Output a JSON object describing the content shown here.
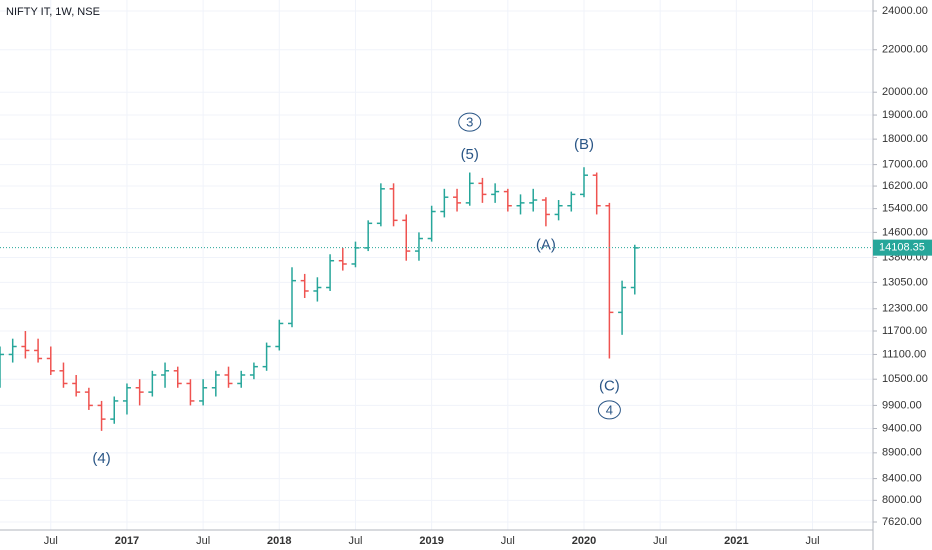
{
  "chart_data": {
    "type": "ohlc",
    "title": "NIFTY IT, 1W, NSE",
    "log_scale": true,
    "grid": true,
    "up_color": "#26a69a",
    "down_color": "#ef5350",
    "xlim": [
      "2016-03",
      "2021-12"
    ],
    "xticks": [
      {
        "value": "2016-07",
        "label": "Jul"
      },
      {
        "value": "2017-01",
        "label": "2017"
      },
      {
        "value": "2017-07",
        "label": "Jul"
      },
      {
        "value": "2018-01",
        "label": "2018"
      },
      {
        "value": "2018-07",
        "label": "Jul"
      },
      {
        "value": "2019-01",
        "label": "2019"
      },
      {
        "value": "2019-07",
        "label": "Jul"
      },
      {
        "value": "2020-01",
        "label": "2020"
      },
      {
        "value": "2020-07",
        "label": "Jul"
      },
      {
        "value": "2021-01",
        "label": "2021"
      },
      {
        "value": "2021-07",
        "label": "Jul"
      }
    ],
    "ylim": [
      7620,
      24000
    ],
    "yticks": [
      {
        "value": 24000,
        "label": "24000.00"
      },
      {
        "value": 22000,
        "label": "22000.00"
      },
      {
        "value": 20000,
        "label": "20000.00"
      },
      {
        "value": 19000,
        "label": "19000.00"
      },
      {
        "value": 18000,
        "label": "18000.00"
      },
      {
        "value": 17000,
        "label": "17000.00"
      },
      {
        "value": 16200,
        "label": "16200.00"
      },
      {
        "value": 15400,
        "label": "15400.00"
      },
      {
        "value": 14600,
        "label": "14600.00"
      },
      {
        "value": 13800,
        "label": "13800.00"
      },
      {
        "value": 13050,
        "label": "13050.00"
      },
      {
        "value": 12300,
        "label": "12300.00"
      },
      {
        "value": 11700,
        "label": "11700.00"
      },
      {
        "value": 11100,
        "label": "11100.00"
      },
      {
        "value": 10500,
        "label": "10500.00"
      },
      {
        "value": 9900,
        "label": "9900.00"
      },
      {
        "value": 9400,
        "label": "9400.00"
      },
      {
        "value": 8900,
        "label": "8900.00"
      },
      {
        "value": 8400,
        "label": "8400.00"
      },
      {
        "value": 8000,
        "label": "8000.00"
      },
      {
        "value": 7620,
        "label": "7620.00"
      }
    ],
    "last_price": 14108.35,
    "x": [
      "2016-03",
      "2016-04",
      "2016-05",
      "2016-06",
      "2016-07",
      "2016-08",
      "2016-09",
      "2016-10",
      "2016-11",
      "2016-12",
      "2017-01",
      "2017-02",
      "2017-03",
      "2017-04",
      "2017-05",
      "2017-06",
      "2017-07",
      "2017-08",
      "2017-09",
      "2017-10",
      "2017-11",
      "2017-12",
      "2018-01",
      "2018-02",
      "2018-03",
      "2018-04",
      "2018-05",
      "2018-06",
      "2018-07",
      "2018-08",
      "2018-09",
      "2018-10",
      "2018-11",
      "2018-12",
      "2019-01",
      "2019-02",
      "2019-03",
      "2019-04",
      "2019-05",
      "2019-06",
      "2019-07",
      "2019-08",
      "2019-09",
      "2019-10",
      "2019-11",
      "2019-12",
      "2020-01",
      "2020-02",
      "2020-03",
      "2020-04",
      "2020-05"
    ],
    "open": [
      10700,
      11100,
      11300,
      11200,
      11000,
      10700,
      10400,
      10200,
      9900,
      9600,
      10000,
      10300,
      10200,
      10600,
      10700,
      10400,
      10000,
      10300,
      10600,
      10400,
      10600,
      10800,
      11300,
      11900,
      13100,
      12800,
      12900,
      13700,
      13600,
      14100,
      14900,
      16100,
      15000,
      14000,
      14400,
      15300,
      15800,
      15600,
      16300,
      15900,
      16000,
      15500,
      15600,
      15700,
      15200,
      15500,
      15900,
      16600,
      15500,
      12200,
      12900
    ],
    "high": [
      11300,
      11500,
      11700,
      11500,
      11300,
      10900,
      10600,
      10300,
      10000,
      10100,
      10400,
      10500,
      10700,
      10900,
      10800,
      10500,
      10500,
      10700,
      10800,
      10700,
      10900,
      11400,
      12000,
      13500,
      13300,
      13200,
      13900,
      14100,
      14300,
      15000,
      16300,
      16300,
      15200,
      14600,
      15500,
      16100,
      16100,
      16700,
      16500,
      16300,
      16100,
      15900,
      16100,
      15800,
      15700,
      16000,
      16900,
      16700,
      15600,
      13100,
      14200
    ],
    "low": [
      10300,
      10900,
      11000,
      10900,
      10600,
      10300,
      10100,
      9800,
      9350,
      9500,
      9700,
      9900,
      10100,
      10300,
      10300,
      9900,
      9900,
      10100,
      10300,
      10300,
      10500,
      10700,
      11200,
      11800,
      12600,
      12500,
      12800,
      13400,
      13500,
      14000,
      14800,
      14800,
      13700,
      13700,
      14300,
      15100,
      15300,
      15500,
      15600,
      15600,
      15300,
      15200,
      15300,
      14800,
      15000,
      15300,
      15800,
      15200,
      11000,
      11600,
      12700
    ],
    "close": [
      11100,
      11300,
      11200,
      11000,
      10700,
      10400,
      10200,
      9900,
      9600,
      10000,
      10300,
      10200,
      10600,
      10700,
      10400,
      10000,
      10300,
      10600,
      10400,
      10600,
      10800,
      11300,
      11900,
      13100,
      12800,
      12900,
      13700,
      13600,
      14100,
      14900,
      16100,
      15000,
      14000,
      14400,
      15300,
      15800,
      15600,
      16300,
      15900,
      16000,
      15500,
      15600,
      15700,
      15200,
      15500,
      15900,
      16600,
      15500,
      12200,
      12900,
      14100
    ],
    "annotations": [
      {
        "text": "(4)",
        "x": "2016-11",
        "y": 8800
      },
      {
        "text": "3",
        "circled": true,
        "x": "2019-04",
        "y": 18700
      },
      {
        "text": "(5)",
        "x": "2019-04",
        "y": 17400
      },
      {
        "text": "(B)",
        "x": "2020-01",
        "y": 17800
      },
      {
        "text": "(A)",
        "x": "2019-10",
        "y": 14200
      },
      {
        "text": "(C)",
        "x": "2020-03",
        "y": 10350
      },
      {
        "text": "4",
        "circled": true,
        "x": "2020-03",
        "y": 9800
      }
    ]
  }
}
